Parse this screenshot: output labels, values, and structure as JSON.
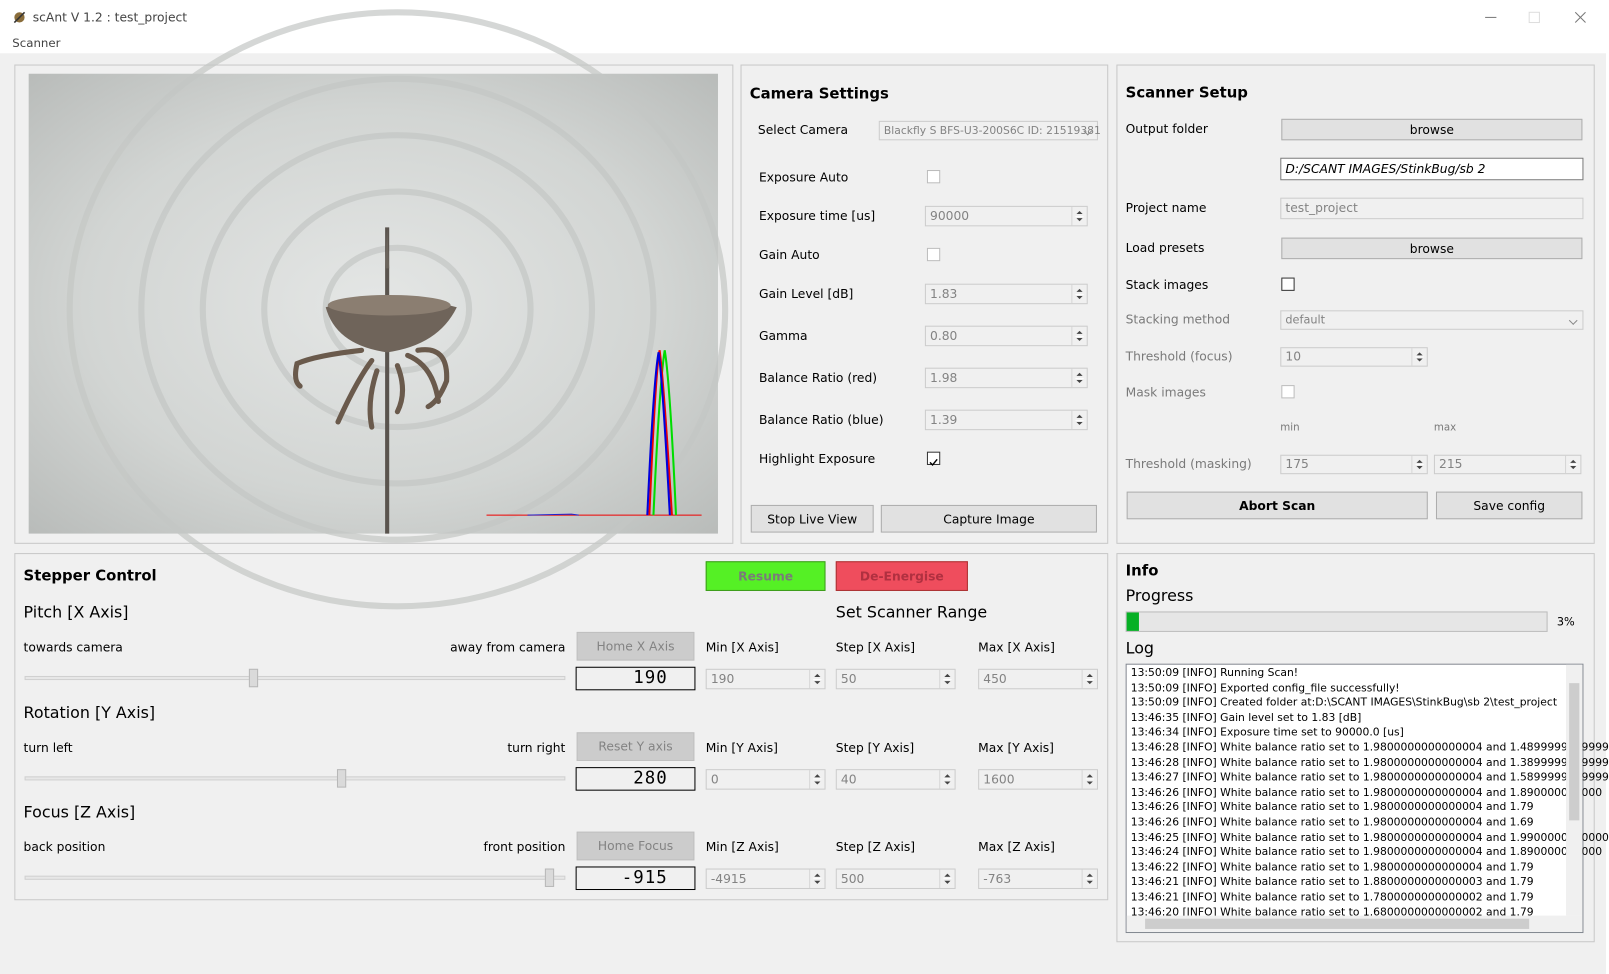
{
  "window": {
    "title": "scAnt V 1.2 :  test_project",
    "menu": [
      "Scanner"
    ]
  },
  "camera_settings": {
    "title": "Camera Settings",
    "select_camera": {
      "label": "Select Camera",
      "value": "Blackfly S BFS-U3-200S6C ID: 21519381"
    },
    "exposure_auto": {
      "label": "Exposure Auto",
      "checked": false
    },
    "exposure_time": {
      "label": "Exposure time [us]",
      "value": "90000"
    },
    "gain_auto": {
      "label": "Gain Auto",
      "checked": false
    },
    "gain_level": {
      "label": "Gain Level [dB]",
      "value": "1.83"
    },
    "gamma": {
      "label": "Gamma",
      "value": "0.80"
    },
    "balance_red": {
      "label": "Balance Ratio (red)",
      "value": "1.98"
    },
    "balance_blue": {
      "label": "Balance Ratio (blue)",
      "value": "1.39"
    },
    "highlight_exposure": {
      "label": "Highlight Exposure",
      "checked": true
    },
    "buttons": [
      "Stop Live View",
      "Capture Image"
    ]
  },
  "scanner_setup": {
    "title": "Scanner Setup",
    "output_folder": {
      "label": "Output folder",
      "button": "browse",
      "path": "D:/SCANT IMAGES/StinkBug/sb 2"
    },
    "project_name": {
      "label": "Project name",
      "value": "test_project"
    },
    "load_presets": {
      "label": "Load presets",
      "button": "browse"
    },
    "stack_images": {
      "label": "Stack images",
      "checked": false
    },
    "stacking_method": {
      "label": "Stacking method",
      "value": "default"
    },
    "threshold_focus": {
      "label": "Threshold (focus)",
      "value": "10"
    },
    "mask_images": {
      "label": "Mask images",
      "checked": false
    },
    "threshold_masking": {
      "label": "Threshold (masking)",
      "min_label": "min",
      "max_label": "max",
      "min": "175",
      "max": "215"
    },
    "buttons": [
      "Abort Scan",
      "Save config"
    ]
  },
  "stepper": {
    "title": "Stepper Control",
    "buttons": [
      "Resume",
      "De-Energise"
    ],
    "range_title": "Set Scanner Range",
    "axes": [
      {
        "title": "Pitch [X Axis]",
        "left": "towards camera",
        "right": "away from camera",
        "home": "Home X Axis",
        "position": "190",
        "min_label": "Min [X Axis]",
        "step_label": "Step [X Axis]",
        "max_label": "Max [X Axis]",
        "min": "190",
        "step": "50",
        "max": "450"
      },
      {
        "title": "Rotation [Y Axis]",
        "left": "turn left",
        "right": "turn right",
        "home": "Reset Y axis",
        "position": "280",
        "min_label": "Min [Y Axis]",
        "step_label": "Step [Y Axis]",
        "max_label": "Max [Y Axis]",
        "min": "0",
        "step": "40",
        "max": "1600"
      },
      {
        "title": "Focus [Z Axis]",
        "left": "back position",
        "right": "front position",
        "home": "Home Focus",
        "position": "-915",
        "min_label": "Min [Z Axis]",
        "step_label": "Step [Z Axis]",
        "max_label": "Max [Z Axis]",
        "min": "-4915",
        "step": "500",
        "max": "-763"
      }
    ]
  },
  "info": {
    "title": "Info",
    "progress_label": "Progress",
    "progress": {
      "value": 3,
      "label": "3%"
    },
    "log_label": "Log",
    "log": [
      "13:50:09 [INFO] Running Scan!",
      "13:50:09 [INFO] Exported config_file successfully!",
      "13:50:09 [INFO] Created folder at:D:\\SCANT IMAGES\\StinkBug\\sb 2\\test_project",
      "13:46:35 [INFO] Gain level set to 1.83 [dB]",
      "13:46:34 [INFO] Exposure time set to 90000.0 [us]",
      "13:46:28 [INFO] White balance ratio set to 1.9800000000000004 and 1.4899999999999",
      "13:46:28 [INFO] White balance ratio set to 1.9800000000000004 and 1.3899999999999",
      "13:46:27 [INFO] White balance ratio set to 1.9800000000000004 and 1.5899999999999",
      "13:46:26 [INFO] White balance ratio set to 1.9800000000000004 and 1.890000000000",
      "13:46:26 [INFO] White balance ratio set to 1.9800000000000004 and 1.79",
      "13:46:26 [INFO] White balance ratio set to 1.9800000000000004 and 1.69",
      "13:46:25 [INFO] White balance ratio set to 1.9800000000000004 and 1.9900000000000",
      "13:46:24 [INFO] White balance ratio set to 1.9800000000000004 and 1.890000000000",
      "13:46:22 [INFO] White balance ratio set to 1.9800000000000004 and 1.79",
      "13:46:21 [INFO] White balance ratio set to 1.8800000000000003 and 1.79",
      "13:46:21 [INFO] White balance ratio set to 1.7800000000000002 and 1.79",
      "13:46:20 [INFO] White balance ratio set to 1.6800000000000002 and 1.79"
    ]
  }
}
